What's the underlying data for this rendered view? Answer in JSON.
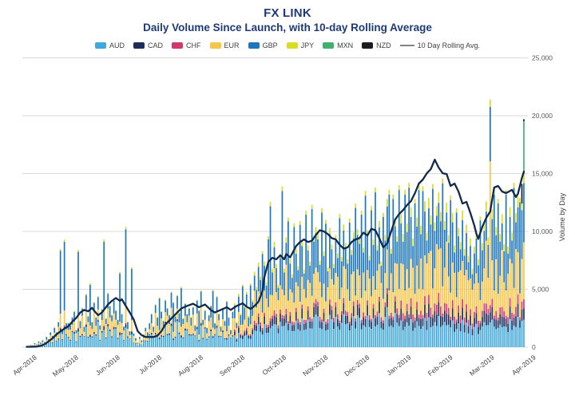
{
  "header": {
    "title": "FX LINK",
    "subtitle": "Daily Volume Since Launch, with 10-day Rolling Average"
  },
  "legend": {
    "items": [
      {
        "label": "AUD",
        "color": "#41a8dc"
      },
      {
        "label": "CAD",
        "color": "#1c2d5b"
      },
      {
        "label": "CHF",
        "color": "#cf3a6e"
      },
      {
        "label": "EUR",
        "color": "#f7c648"
      },
      {
        "label": "GBP",
        "color": "#1d76bd"
      },
      {
        "label": "JPY",
        "color": "#d9dd27"
      },
      {
        "label": "MXN",
        "color": "#41b071"
      },
      {
        "label": "NZD",
        "color": "#1b1c20"
      }
    ],
    "line_item": {
      "label": "10 Day Rolling Avg.",
      "color": "#808285"
    }
  },
  "axes": {
    "ylabel": "Volume by Day",
    "yticks": [
      {
        "value": 0,
        "label": "0"
      },
      {
        "value": 5000,
        "label": "5,000"
      },
      {
        "value": 10000,
        "label": "10,000"
      },
      {
        "value": 15000,
        "label": "15,000"
      },
      {
        "value": 20000,
        "label": "20,000"
      },
      {
        "value": 25000,
        "label": "25,000"
      }
    ],
    "xticks": [
      "Apr-2018",
      "May-2018",
      "Jun-2018",
      "Jul-2018",
      "Aug-2018",
      "Sep-2018",
      "Oct-2018",
      "Nov-2018",
      "Dec-2018",
      "Jan-2019",
      "Feb-2019",
      "Mar-2019",
      "Apr-2019"
    ]
  },
  "chart_data": {
    "type": "bar",
    "subtype": "stacked-daily-bars-with-rolling-average-line",
    "title": "FX LINK",
    "subtitle": "Daily Volume Since Launch, with 10-day Rolling Average",
    "ylabel": "Volume by Day",
    "ylim": [
      0,
      25000
    ],
    "grid": true,
    "legend_position": "top",
    "x_unit": "trading day index since launch, 21 days per month, Apr-2018 to Apr-2019",
    "categories_months": [
      "Apr-2018",
      "May-2018",
      "Jun-2018",
      "Jul-2018",
      "Aug-2018",
      "Sep-2018",
      "Oct-2018",
      "Nov-2018",
      "Dec-2018",
      "Jan-2019",
      "Feb-2019",
      "Mar-2019",
      "Apr-2019"
    ],
    "series_stack_order": [
      "AUD",
      "CAD",
      "CHF",
      "EUR",
      "GBP",
      "JPY",
      "MXN",
      "NZD"
    ],
    "series_colors": {
      "AUD": "#41a8dc",
      "CAD": "#1c2d5b",
      "CHF": "#cf3a6e",
      "EUR": "#f7c648",
      "GBP": "#1d76bd",
      "JPY": "#d9dd27",
      "MXN": "#41b071",
      "NZD": "#1b1c20"
    },
    "line_color": "#13294b",
    "bar_totals": [
      120,
      80,
      200,
      150,
      350,
      250,
      500,
      400,
      600,
      450,
      900,
      700,
      1300,
      1000,
      1700,
      1300,
      2200,
      8500,
      1600,
      9300,
      2100,
      2100,
      1900,
      2600,
      3100,
      1500,
      8400,
      2300,
      3400,
      1800,
      4600,
      2700,
      5500,
      2200,
      3900,
      2600,
      4400,
      1900,
      3300,
      9300,
      2500,
      4700,
      3600,
      2800,
      4100,
      3200,
      2400,
      6500,
      2900,
      1800,
      10400,
      2200,
      1400,
      6900,
      1200,
      800,
      400,
      900,
      600,
      1100,
      1700,
      1300,
      2100,
      2900,
      1800,
      3700,
      2600,
      4300,
      3100,
      2300,
      4100,
      3400,
      2800,
      4800,
      3900,
      2700,
      4500,
      3000,
      5200,
      2500,
      3800,
      2900,
      3400,
      2600,
      3500,
      1900,
      4100,
      3200,
      4900,
      2400,
      3200,
      1700,
      2800,
      3600,
      4950,
      2100,
      4400,
      2900,
      1800,
      3400,
      2300,
      4000,
      2600,
      1500,
      3100,
      3800,
      2200,
      4600,
      2900,
      5400,
      3600,
      4800,
      2700,
      5500,
      4100,
      6500,
      5200,
      7300,
      6100,
      8300,
      7400,
      5600,
      9600,
      12550,
      6800,
      9100,
      7200,
      5400,
      8100,
      13900,
      6800,
      9500,
      11200,
      7600,
      6300,
      10700,
      8500,
      7000,
      10900,
      9200,
      6700,
      11800,
      8800,
      7400,
      12300,
      9600,
      10400,
      9800,
      7500,
      12000,
      8300,
      11000,
      6900,
      10300,
      8900,
      7200,
      9700,
      8100,
      11500,
      7800,
      10600,
      9000,
      7600,
      11100,
      8400,
      9900,
      12400,
      10200,
      9400,
      11800,
      8600,
      13500,
      10100,
      7900,
      12200,
      9300,
      13800,
      8800,
      10900,
      7400,
      11600,
      9700,
      12800,
      13600,
      8500,
      13200,
      11000,
      9600,
      14000,
      11500,
      9800,
      13600,
      10700,
      14200,
      12100,
      9400,
      12800,
      11200,
      14000,
      10500,
      13900,
      12600,
      9900,
      12900,
      11400,
      14100,
      10800,
      12200,
      13400,
      11700,
      14600,
      10900,
      12500,
      9700,
      13100,
      11600,
      8800,
      12000,
      10300,
      9100,
      11800,
      8500,
      10600,
      7900,
      9400,
      6800,
      8700,
      10100,
      7600,
      11300,
      9000,
      10800,
      12600,
      9500,
      21400,
      11900,
      13600,
      10400,
      12800,
      9800,
      11500,
      8900,
      13600,
      8700,
      12100,
      9900,
      14200,
      11600,
      13000,
      12900,
      14100,
      19700
    ],
    "bar_profile_ids": "EeyEeyEeEyeEyeEeybebEeyEeybeyEeybeyeEyebyeeyeEybeybeEbyeEyeEyeEeEyebyeEyeebyEebyeEyeyEebeyEeyebEeyEeybeEymMmmBmMmBmMmmMBmMBBmMmMmBmMBmMBmMBmMBmMBmmmMBmBMmmMmMBmmMmBMmBmmBMBmMBmBMmMBmmBMBmMBlLBlBlLBlBLBlLlLBlLlLBlLlBlLBlLlLlLlLllLBllLlGlBLBlLlBLlLBLlBzx",
    "composition_profiles": {
      "E": [
        0.5,
        0.03,
        0.01,
        0.2,
        0.24,
        0.02,
        0,
        0
      ],
      "e": [
        0.38,
        0.04,
        0.01,
        0.28,
        0.27,
        0.02,
        0,
        0
      ],
      "y": [
        0.3,
        0.03,
        0.01,
        0.46,
        0.18,
        0.02,
        0,
        0
      ],
      "b": [
        0.16,
        0.03,
        0.01,
        0.14,
        0.64,
        0.02,
        0,
        0
      ],
      "m": [
        0.27,
        0.09,
        0.04,
        0.26,
        0.29,
        0.05,
        0,
        0
      ],
      "M": [
        0.22,
        0.08,
        0.05,
        0.4,
        0.2,
        0.05,
        0,
        0
      ],
      "B": [
        0.13,
        0.05,
        0.02,
        0.16,
        0.61,
        0.03,
        0,
        0
      ],
      "l": [
        0.2,
        0.09,
        0.06,
        0.28,
        0.3,
        0.07,
        0,
        0
      ],
      "L": [
        0.15,
        0.08,
        0.07,
        0.43,
        0.2,
        0.07,
        0,
        0
      ],
      "G": [
        0.1,
        0.04,
        0.03,
        0.58,
        0.22,
        0.03,
        0,
        0
      ],
      "x": [
        0.12,
        0.05,
        0.04,
        0.25,
        0.26,
        0.04,
        0.23,
        0.01
      ],
      "z": [
        0.16,
        0.07,
        0.05,
        0.26,
        0.3,
        0.04,
        0,
        0.12
      ]
    },
    "rolling_avg_points": [
      [
        0,
        30
      ],
      [
        5,
        50
      ],
      [
        7,
        120
      ],
      [
        9,
        250
      ],
      [
        11,
        500
      ],
      [
        13,
        750
      ],
      [
        15,
        1100
      ],
      [
        17,
        1350
      ],
      [
        19,
        1600
      ],
      [
        21,
        1800
      ],
      [
        23,
        2200
      ],
      [
        25,
        2530
      ],
      [
        27,
        2990
      ],
      [
        29,
        3220
      ],
      [
        31,
        3100
      ],
      [
        33,
        3400
      ],
      [
        34,
        3150
      ],
      [
        36,
        2760
      ],
      [
        38,
        2990
      ],
      [
        41,
        3680
      ],
      [
        43,
        4000
      ],
      [
        45,
        4250
      ],
      [
        47,
        4000
      ],
      [
        48,
        4140
      ],
      [
        50,
        3560
      ],
      [
        52,
        2990
      ],
      [
        54,
        2400
      ],
      [
        56,
        1380
      ],
      [
        58,
        1035
      ],
      [
        60,
        875
      ],
      [
        64,
        875
      ],
      [
        66,
        990
      ],
      [
        68,
        1380
      ],
      [
        70,
        1950
      ],
      [
        72,
        2300
      ],
      [
        74,
        2645
      ],
      [
        76,
        2990
      ],
      [
        78,
        3335
      ],
      [
        81,
        3565
      ],
      [
        84,
        3750
      ],
      [
        87,
        3450
      ],
      [
        90,
        3680
      ],
      [
        93,
        3200
      ],
      [
        95,
        2990
      ],
      [
        98,
        3220
      ],
      [
        101,
        3450
      ],
      [
        103,
        3220
      ],
      [
        106,
        3560
      ],
      [
        109,
        3790
      ],
      [
        111,
        3500
      ],
      [
        113,
        3300
      ],
      [
        115,
        3560
      ],
      [
        117,
        3930
      ],
      [
        119,
        4830
      ],
      [
        120,
        6070
      ],
      [
        122,
        7380
      ],
      [
        124,
        7720
      ],
      [
        126,
        7590
      ],
      [
        128,
        7930
      ],
      [
        130,
        7590
      ],
      [
        131,
        8050
      ],
      [
        133,
        7760
      ],
      [
        136,
        8740
      ],
      [
        138,
        9080
      ],
      [
        140,
        9310
      ],
      [
        142,
        9080
      ],
      [
        144,
        9200
      ],
      [
        146,
        9700
      ],
      [
        148,
        10100
      ],
      [
        150,
        10000
      ],
      [
        152,
        9770
      ],
      [
        154,
        9420
      ],
      [
        156,
        9310
      ],
      [
        158,
        8850
      ],
      [
        160,
        8510
      ],
      [
        162,
        8620
      ],
      [
        164,
        9080
      ],
      [
        166,
        9310
      ],
      [
        168,
        9420
      ],
      [
        170,
        9890
      ],
      [
        172,
        9650
      ],
      [
        174,
        10230
      ],
      [
        176,
        10100
      ],
      [
        178,
        9430
      ],
      [
        180,
        8620
      ],
      [
        182,
        8970
      ],
      [
        184,
        10000
      ],
      [
        186,
        11030
      ],
      [
        188,
        11500
      ],
      [
        190,
        11840
      ],
      [
        192,
        12280
      ],
      [
        194,
        12620
      ],
      [
        196,
        13310
      ],
      [
        198,
        14140
      ],
      [
        200,
        14480
      ],
      [
        202,
        15030
      ],
      [
        204,
        15380
      ],
      [
        206,
        16200
      ],
      [
        208,
        15520
      ],
      [
        210,
        15030
      ],
      [
        212,
        14960
      ],
      [
        214,
        13930
      ],
      [
        216,
        14140
      ],
      [
        218,
        13450
      ],
      [
        220,
        12410
      ],
      [
        222,
        12550
      ],
      [
        224,
        11590
      ],
      [
        226,
        10500
      ],
      [
        227,
        9800
      ],
      [
        228,
        9350
      ],
      [
        229,
        9890
      ],
      [
        230,
        10400
      ],
      [
        232,
        11170
      ],
      [
        234,
        11720
      ],
      [
        236,
        13790
      ],
      [
        238,
        13930
      ],
      [
        240,
        13450
      ],
      [
        242,
        13310
      ],
      [
        245,
        13590
      ],
      [
        247,
        12970
      ],
      [
        248,
        13240
      ],
      [
        250,
        14620
      ],
      [
        251,
        15170
      ]
    ]
  },
  "style": {
    "grid_color": "#d9d9da",
    "tick_text_color": "#58595b",
    "axis_label_color": "#414042",
    "title_color": "#1e3a78"
  }
}
